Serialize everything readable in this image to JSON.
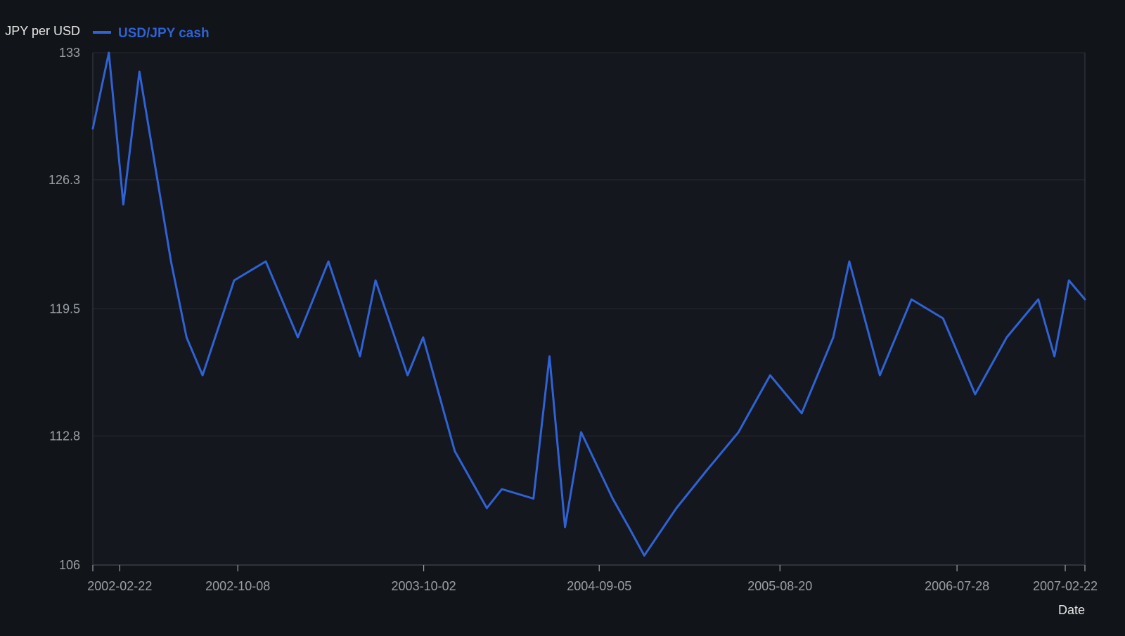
{
  "chart_data": {
    "type": "line",
    "title": "",
    "xlabel": "Date",
    "ylabel": "JPY per USD",
    "ylim": [
      106,
      133
    ],
    "yticks": [
      133,
      126.3,
      119.5,
      112.8,
      106
    ],
    "ytick_labels": [
      "133",
      "126.3",
      "119.5",
      "112.8",
      "106"
    ],
    "xlim": [
      "2002-01-01",
      "2007-04-01"
    ],
    "xticks": [
      "2002-02-22",
      "2002-10-08",
      "2003-10-02",
      "2004-09-05",
      "2005-08-20",
      "2006-07-28",
      "2007-02-22"
    ],
    "xtick_labels": [
      "2002-02-22",
      "2002-10-08",
      "2003-10-02",
      "2004-09-05",
      "2005-08-20",
      "2006-07-28",
      "2007-02-22"
    ],
    "grid": true,
    "legend_position": "top-left",
    "colors": {
      "background": "#111419",
      "plot_background": "#14171d",
      "grid": "#262a31",
      "axis": "#3a3e46",
      "tick_text": "#9aa0a6",
      "label_text": "#e6e6e6",
      "series": "#2f62d4"
    },
    "series": [
      {
        "name": "USD/JPY cash",
        "color": "#2f62d4",
        "x": [
          "2002-01-01",
          "2002-02-01",
          "2002-03-01",
          "2002-04-01",
          "2002-06-01",
          "2002-07-01",
          "2002-08-01",
          "2002-10-01",
          "2002-12-01",
          "2003-02-01",
          "2003-04-01",
          "2003-06-01",
          "2003-07-01",
          "2003-09-01",
          "2003-10-01",
          "2003-12-01",
          "2004-02-01",
          "2004-03-01",
          "2004-05-01",
          "2004-06-01",
          "2004-07-01",
          "2004-08-01",
          "2004-10-01",
          "2004-11-01",
          "2004-12-01",
          "2005-02-01",
          "2005-04-01",
          "2005-06-01",
          "2005-08-01",
          "2005-10-01",
          "2005-12-01",
          "2006-01-01",
          "2006-03-01",
          "2006-05-01",
          "2006-07-01",
          "2006-09-01",
          "2006-11-01",
          "2007-01-01",
          "2007-02-01",
          "2007-03-01",
          "2007-04-01"
        ],
        "values": [
          129,
          133,
          125,
          132,
          122,
          118,
          116,
          121,
          122,
          118,
          122,
          117,
          121,
          116,
          118,
          112,
          109,
          110,
          109.5,
          117,
          108,
          113,
          109.5,
          108,
          106.5,
          109,
          111,
          113,
          116,
          114,
          118,
          122,
          116,
          120,
          119,
          115,
          118,
          120,
          117,
          121,
          120
        ]
      }
    ]
  }
}
